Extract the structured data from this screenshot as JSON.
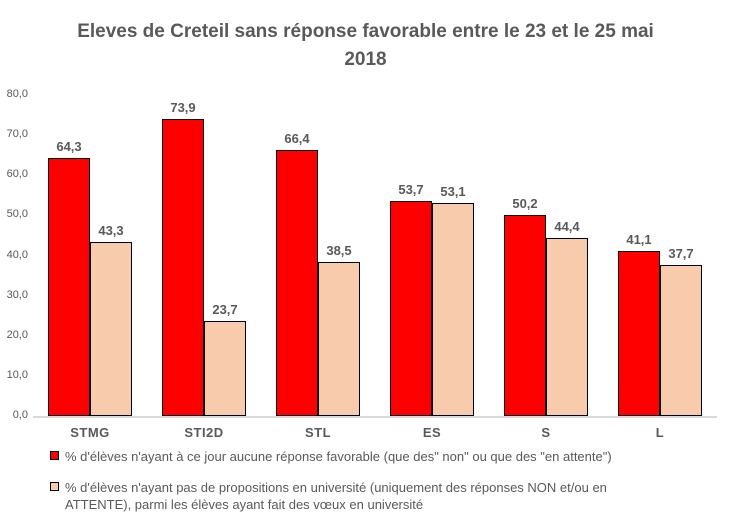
{
  "chart": {
    "title": "Eleves de Creteil sans réponse favorable entre le 23 et le 25 mai 2018",
    "title_lines": [
      "Eleves de Creteil sans réponse favorable entre le 23 et le 25 mai",
      "2018"
    ]
  },
  "colors": {
    "series_red": "#FF0000",
    "series_peach": "#F8CBAD",
    "bar_border": "#000000",
    "text_gray": "#595959",
    "axis_line": "#D9D9D9"
  },
  "chart_data": {
    "type": "bar",
    "categories": [
      "STMG",
      "STI2D",
      "STL",
      "ES",
      "S",
      "L"
    ],
    "series": [
      {
        "name": "% d'élèves n'ayant à ce jour aucune réponse favorable (que des\" non\" ou que des \"en attente\")",
        "color": "#FF0000",
        "values": [
          64.3,
          73.9,
          66.4,
          53.7,
          50.2,
          41.1
        ]
      },
      {
        "name": "% d'élèves n'ayant pas de propositions en université (uniquement des réponses NON et/ou en ATTENTE), parmi les élèves ayant fait des vœux en université",
        "color": "#F8CBAD",
        "values": [
          43.3,
          23.7,
          38.5,
          53.1,
          44.4,
          37.7
        ]
      }
    ],
    "ylim": [
      0,
      80
    ],
    "ytick_step": 10,
    "ytick_labels": [
      "0,0",
      "10,0",
      "20,0",
      "30,0",
      "40,0",
      "50,0",
      "60,0",
      "70,0",
      "80,0"
    ],
    "grid": false,
    "legend_position": "bottom",
    "decimal_separator": ",",
    "xlabel": "",
    "ylabel": ""
  }
}
